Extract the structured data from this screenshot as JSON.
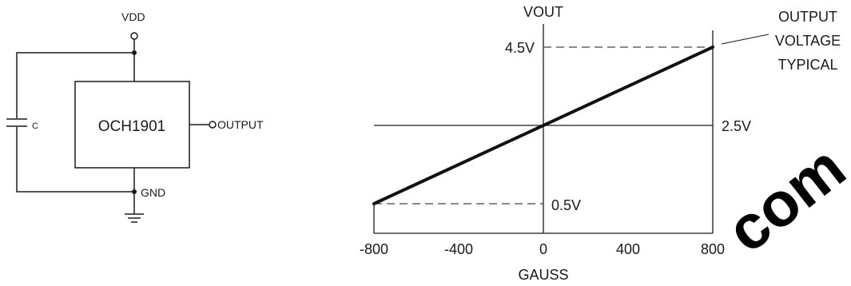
{
  "schematic": {
    "vdd_label": "VDD",
    "gnd_label": "GND",
    "chip_label": "OCH1901",
    "output_label": "OUTPUT",
    "capacitor_label": "C"
  },
  "chart_data": {
    "type": "line",
    "title": "VOUT",
    "xlabel": "GAUSS",
    "ylabel": "VOUT",
    "xlim": [
      -800,
      800
    ],
    "ylim": [
      0.5,
      4.5
    ],
    "x_ticks": [
      "-800",
      "-400",
      "0",
      "400",
      "800"
    ],
    "y_marks": [
      "4.5V",
      "2.5V",
      "0.5V"
    ],
    "series": [
      {
        "name": "OUTPUT VOLTAGE TYPICAL",
        "x": [
          -800,
          800
        ],
        "y": [
          0.5,
          4.5
        ]
      }
    ],
    "annotation_lines": [
      "OUTPUT",
      "VOLTAGE",
      "TYPICAL"
    ]
  },
  "watermark": {
    "text": "com",
    "color": "#000000"
  }
}
